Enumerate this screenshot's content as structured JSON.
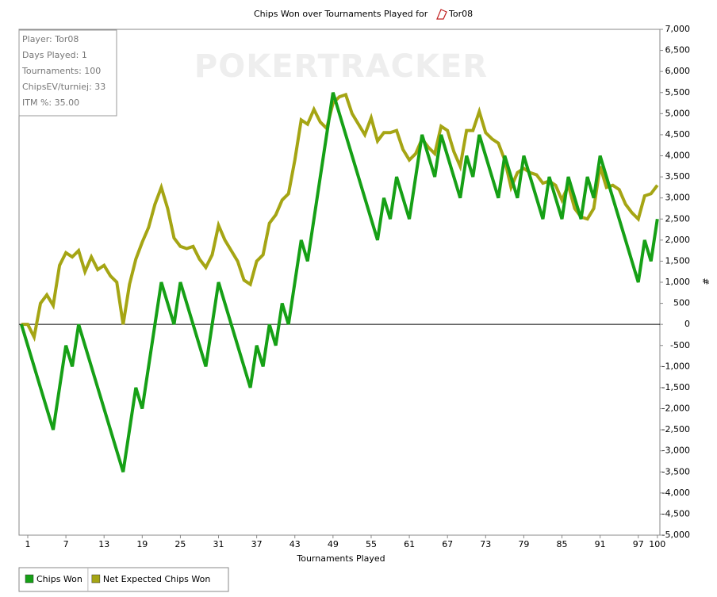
{
  "chart_data": {
    "type": "line",
    "title": "Chips Won over Tournaments Played for",
    "player": "Tor08",
    "watermark": "POKERTRACKER",
    "info_box": [
      "Player: Tor08",
      "Days Played: 1",
      "Tournaments: 100",
      "ChipsEV/turniej: 33",
      "ITM %: 35.00"
    ],
    "xlabel": "Tournaments Played",
    "ylabel": "#",
    "x": [
      0,
      1,
      2,
      3,
      4,
      5,
      6,
      7,
      8,
      9,
      10,
      11,
      12,
      13,
      14,
      15,
      16,
      17,
      18,
      19,
      20,
      21,
      22,
      23,
      24,
      25,
      26,
      27,
      28,
      29,
      30,
      31,
      32,
      33,
      34,
      35,
      36,
      37,
      38,
      39,
      40,
      41,
      42,
      43,
      44,
      45,
      46,
      47,
      48,
      49,
      50,
      51,
      52,
      53,
      54,
      55,
      56,
      57,
      58,
      59,
      60,
      61,
      62,
      63,
      64,
      65,
      66,
      67,
      68,
      69,
      70,
      71,
      72,
      73,
      74,
      75,
      76,
      77,
      78,
      79,
      80,
      81,
      82,
      83,
      84,
      85,
      86,
      87,
      88,
      89,
      90,
      91,
      92,
      93,
      94,
      95,
      96,
      97,
      98,
      99,
      100
    ],
    "series": [
      {
        "name": "Chips Won",
        "color": "#16a016",
        "values": [
          0,
          -500,
          -1000,
          -1500,
          -2000,
          -2500,
          -1500,
          -500,
          -1000,
          0,
          -500,
          -1000,
          -1500,
          -2000,
          -2500,
          -3000,
          -3500,
          -2500,
          -1500,
          -2000,
          -1000,
          0,
          1000,
          500,
          0,
          1000,
          500,
          0,
          -500,
          -1000,
          0,
          1000,
          500,
          0,
          -500,
          -1000,
          -1500,
          -500,
          -1000,
          0,
          -500,
          500,
          0,
          1000,
          2000,
          1500,
          2500,
          3500,
          4500,
          5500,
          5000,
          4500,
          4000,
          3500,
          3000,
          2500,
          2000,
          3000,
          2500,
          3500,
          3000,
          2500,
          3500,
          4500,
          4000,
          3500,
          4500,
          4000,
          3500,
          3000,
          4000,
          3500,
          4500,
          4000,
          3500,
          3000,
          4000,
          3500,
          3000,
          4000,
          3500,
          3000,
          2500,
          3500,
          3000,
          2500,
          3500,
          3000,
          2500,
          3500,
          3000,
          4000,
          3500,
          3000,
          2500,
          2000,
          1500,
          1000,
          2000,
          1500,
          2500
        ]
      },
      {
        "name": "Net Expected Chips Won",
        "color": "#a5a514",
        "values": [
          0,
          0,
          -300,
          500,
          700,
          450,
          1400,
          1700,
          1600,
          1750,
          1250,
          1600,
          1300,
          1400,
          1150,
          1000,
          0,
          950,
          1550,
          1950,
          2300,
          2850,
          3250,
          2750,
          2050,
          1850,
          1800,
          1850,
          1550,
          1350,
          1650,
          2350,
          2000,
          1750,
          1500,
          1050,
          950,
          1500,
          1650,
          2400,
          2600,
          2950,
          3100,
          3900,
          4850,
          4750,
          5100,
          4800,
          4650,
          5250,
          5400,
          5450,
          5000,
          4750,
          4500,
          4900,
          4350,
          4550,
          4550,
          4600,
          4150,
          3900,
          4050,
          4400,
          4200,
          4050,
          4700,
          4600,
          4100,
          3750,
          4600,
          4600,
          5050,
          4550,
          4400,
          4300,
          3900,
          3250,
          3600,
          3700,
          3600,
          3550,
          3350,
          3400,
          3300,
          2950,
          3300,
          2750,
          2550,
          2500,
          2750,
          3750,
          3250,
          3300,
          3200,
          2850,
          2650,
          2500,
          3050,
          3100,
          3300
        ]
      }
    ],
    "xlim": [
      -0.37,
      100.4
    ],
    "xticks": [
      1,
      7,
      13,
      19,
      25,
      31,
      37,
      43,
      49,
      55,
      61,
      67,
      73,
      79,
      85,
      91,
      97,
      100
    ],
    "ylim": [
      -5000,
      7000
    ],
    "yticks": [
      {
        "value": -5000,
        "label": "-5,000"
      },
      {
        "value": -4500,
        "label": "-4,500"
      },
      {
        "value": -4000,
        "label": "-4,000"
      },
      {
        "value": -3500,
        "label": "-3,500"
      },
      {
        "value": -3000,
        "label": "-3,000"
      },
      {
        "value": -2500,
        "label": "-2,500"
      },
      {
        "value": -2000,
        "label": "-2,000"
      },
      {
        "value": -1500,
        "label": "-1,500"
      },
      {
        "value": -1000,
        "label": "-1,000"
      },
      -500,
      0,
      500,
      {
        "value": 1000,
        "label": "1,000"
      },
      {
        "value": 1500,
        "label": "1,500"
      },
      {
        "value": 2000,
        "label": "2,000"
      },
      {
        "value": 2500,
        "label": "2,500"
      },
      {
        "value": 3000,
        "label": "3,000"
      },
      {
        "value": 3500,
        "label": "3,500"
      },
      {
        "value": 4000,
        "label": "4,000"
      },
      {
        "value": 4500,
        "label": "4,500"
      },
      {
        "value": 5000,
        "label": "5,000"
      },
      {
        "value": 5500,
        "label": "5,500"
      },
      {
        "value": 6000,
        "label": "6,000"
      },
      {
        "value": 6500,
        "label": "6,500"
      },
      {
        "value": 7000,
        "label": "7,000"
      }
    ],
    "legend": "bottom-left"
  }
}
